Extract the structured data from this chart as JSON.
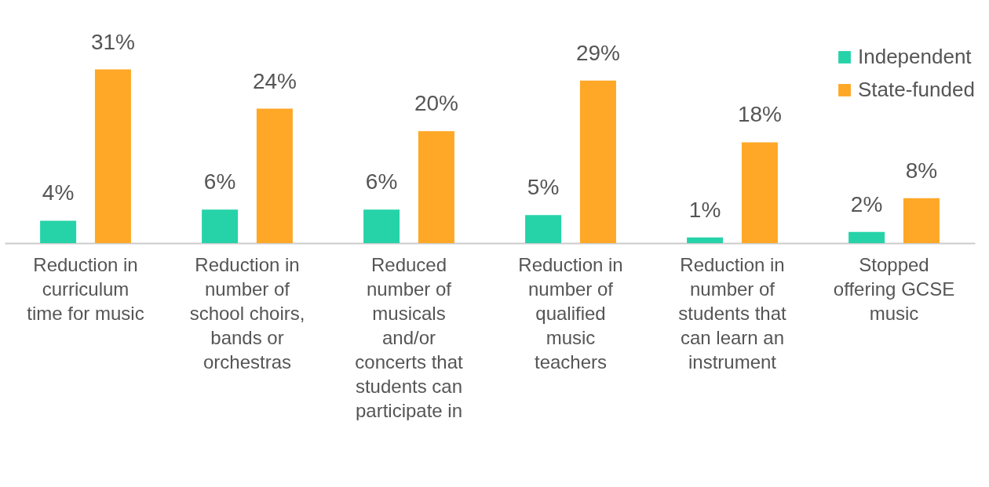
{
  "chart_data": {
    "type": "bar",
    "categories": [
      "Reduction in\ncurriculum\ntime for music",
      "Reduction in\nnumber of\nschool choirs,\nbands or\norchestras",
      "Reduced\nnumber of\nmusicals\nand/or\nconcerts that\nstudents can\nparticipate in",
      "Reduction in\nnumber of\nqualified\nmusic\nteachers",
      "Reduction in\nnumber of\nstudents that\ncan learn an\ninstrument",
      "Stopped\noffering GCSE\nmusic"
    ],
    "series": [
      {
        "name": "Independent",
        "color": "#26d3a8",
        "values": [
          4,
          6,
          6,
          5,
          1,
          2
        ],
        "value_labels": [
          "4%",
          "6%",
          "6%",
          "5%",
          "1%",
          "2%"
        ]
      },
      {
        "name": "State-funded",
        "color": "#ffa726",
        "values": [
          31,
          24,
          20,
          29,
          18,
          8
        ],
        "value_labels": [
          "31%",
          "24%",
          "20%",
          "29%",
          "18%",
          "8%"
        ]
      }
    ],
    "tick_labels": "x",
    "grid": false,
    "legend": "top right"
  }
}
